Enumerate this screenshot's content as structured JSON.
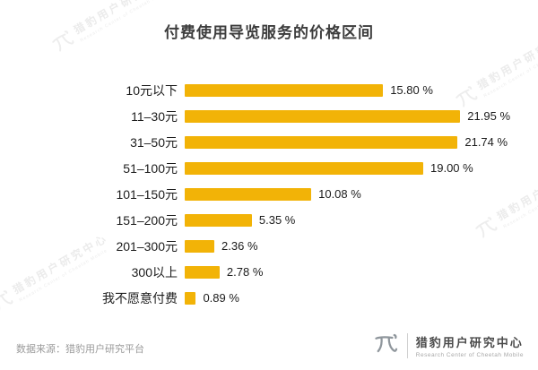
{
  "title": "付费使用导览服务的价格区间",
  "chart_data": {
    "type": "bar",
    "orientation": "horizontal",
    "title": "付费使用导览服务的价格区间",
    "categories": [
      "10元以下",
      "11–30元",
      "31–50元",
      "51–100元",
      "101–150元",
      "151–200元",
      "201–300元",
      "300以上",
      "我不愿意付费"
    ],
    "values": [
      15.8,
      21.95,
      21.74,
      19.0,
      10.08,
      5.35,
      2.36,
      2.78,
      0.89
    ],
    "value_labels": [
      "15.80 %",
      "21.95 %",
      "21.74 %",
      "19.00 %",
      "10.08 %",
      "5.35 %",
      "2.36 %",
      "2.78 %",
      "0.89 %"
    ],
    "xlim": [
      0,
      22
    ],
    "grid": false,
    "legend": false
  },
  "colors": {
    "bar": "#F2B307",
    "title_text": "#3d3d3d",
    "label_text": "#1c1c1c"
  },
  "footer": {
    "source": "数据来源：猎豹用户研究平台",
    "brand": "猎豹用户研究中心",
    "brand_en": "Research Center of Cheetah Mobile"
  },
  "watermark": {
    "text": "猎豹用户研究中心",
    "text_en": "Research Center of Cheetah Mobile"
  }
}
